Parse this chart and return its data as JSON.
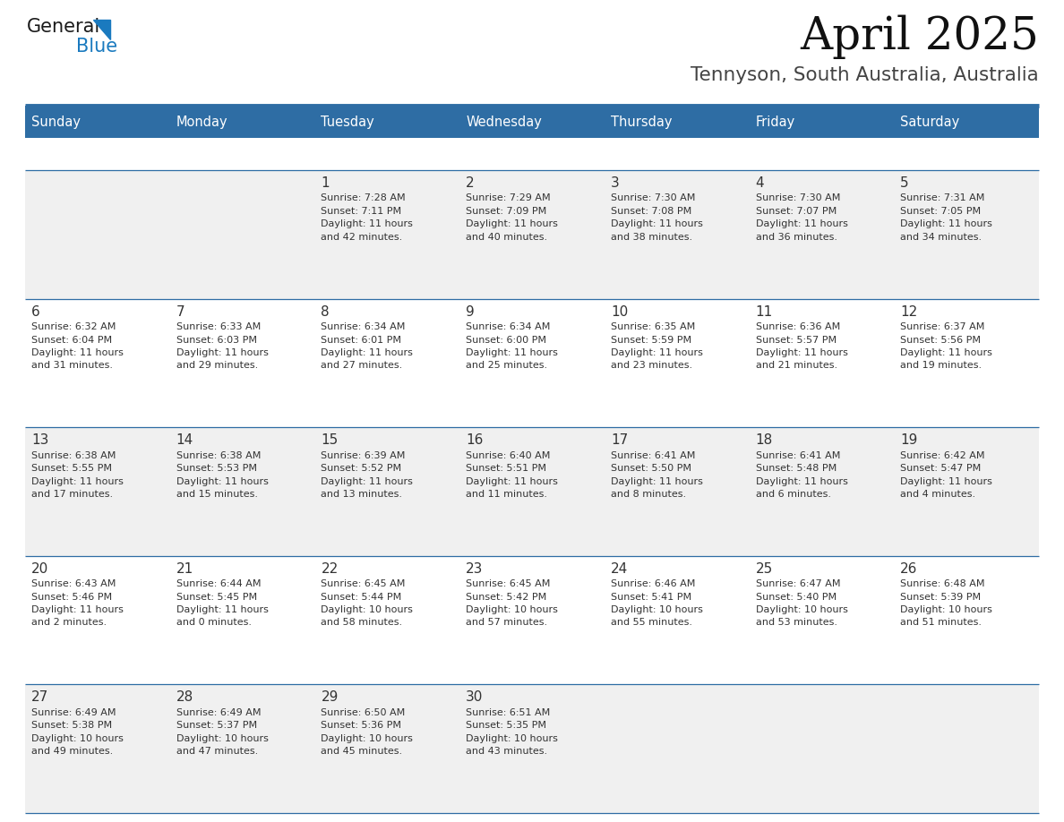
{
  "title": "April 2025",
  "subtitle": "Tennyson, South Australia, Australia",
  "header_bg": "#2E6DA4",
  "header_text_color": "#FFFFFF",
  "cell_bg_odd": "#F0F0F0",
  "cell_bg_even": "#FFFFFF",
  "separator_color": "#2E6DA4",
  "text_color": "#333333",
  "days_of_week": [
    "Sunday",
    "Monday",
    "Tuesday",
    "Wednesday",
    "Thursday",
    "Friday",
    "Saturday"
  ],
  "weeks": [
    [
      {
        "day": "",
        "info": ""
      },
      {
        "day": "",
        "info": ""
      },
      {
        "day": "1",
        "info": "Sunrise: 7:28 AM\nSunset: 7:11 PM\nDaylight: 11 hours\nand 42 minutes."
      },
      {
        "day": "2",
        "info": "Sunrise: 7:29 AM\nSunset: 7:09 PM\nDaylight: 11 hours\nand 40 minutes."
      },
      {
        "day": "3",
        "info": "Sunrise: 7:30 AM\nSunset: 7:08 PM\nDaylight: 11 hours\nand 38 minutes."
      },
      {
        "day": "4",
        "info": "Sunrise: 7:30 AM\nSunset: 7:07 PM\nDaylight: 11 hours\nand 36 minutes."
      },
      {
        "day": "5",
        "info": "Sunrise: 7:31 AM\nSunset: 7:05 PM\nDaylight: 11 hours\nand 34 minutes."
      }
    ],
    [
      {
        "day": "6",
        "info": "Sunrise: 6:32 AM\nSunset: 6:04 PM\nDaylight: 11 hours\nand 31 minutes."
      },
      {
        "day": "7",
        "info": "Sunrise: 6:33 AM\nSunset: 6:03 PM\nDaylight: 11 hours\nand 29 minutes."
      },
      {
        "day": "8",
        "info": "Sunrise: 6:34 AM\nSunset: 6:01 PM\nDaylight: 11 hours\nand 27 minutes."
      },
      {
        "day": "9",
        "info": "Sunrise: 6:34 AM\nSunset: 6:00 PM\nDaylight: 11 hours\nand 25 minutes."
      },
      {
        "day": "10",
        "info": "Sunrise: 6:35 AM\nSunset: 5:59 PM\nDaylight: 11 hours\nand 23 minutes."
      },
      {
        "day": "11",
        "info": "Sunrise: 6:36 AM\nSunset: 5:57 PM\nDaylight: 11 hours\nand 21 minutes."
      },
      {
        "day": "12",
        "info": "Sunrise: 6:37 AM\nSunset: 5:56 PM\nDaylight: 11 hours\nand 19 minutes."
      }
    ],
    [
      {
        "day": "13",
        "info": "Sunrise: 6:38 AM\nSunset: 5:55 PM\nDaylight: 11 hours\nand 17 minutes."
      },
      {
        "day": "14",
        "info": "Sunrise: 6:38 AM\nSunset: 5:53 PM\nDaylight: 11 hours\nand 15 minutes."
      },
      {
        "day": "15",
        "info": "Sunrise: 6:39 AM\nSunset: 5:52 PM\nDaylight: 11 hours\nand 13 minutes."
      },
      {
        "day": "16",
        "info": "Sunrise: 6:40 AM\nSunset: 5:51 PM\nDaylight: 11 hours\nand 11 minutes."
      },
      {
        "day": "17",
        "info": "Sunrise: 6:41 AM\nSunset: 5:50 PM\nDaylight: 11 hours\nand 8 minutes."
      },
      {
        "day": "18",
        "info": "Sunrise: 6:41 AM\nSunset: 5:48 PM\nDaylight: 11 hours\nand 6 minutes."
      },
      {
        "day": "19",
        "info": "Sunrise: 6:42 AM\nSunset: 5:47 PM\nDaylight: 11 hours\nand 4 minutes."
      }
    ],
    [
      {
        "day": "20",
        "info": "Sunrise: 6:43 AM\nSunset: 5:46 PM\nDaylight: 11 hours\nand 2 minutes."
      },
      {
        "day": "21",
        "info": "Sunrise: 6:44 AM\nSunset: 5:45 PM\nDaylight: 11 hours\nand 0 minutes."
      },
      {
        "day": "22",
        "info": "Sunrise: 6:45 AM\nSunset: 5:44 PM\nDaylight: 10 hours\nand 58 minutes."
      },
      {
        "day": "23",
        "info": "Sunrise: 6:45 AM\nSunset: 5:42 PM\nDaylight: 10 hours\nand 57 minutes."
      },
      {
        "day": "24",
        "info": "Sunrise: 6:46 AM\nSunset: 5:41 PM\nDaylight: 10 hours\nand 55 minutes."
      },
      {
        "day": "25",
        "info": "Sunrise: 6:47 AM\nSunset: 5:40 PM\nDaylight: 10 hours\nand 53 minutes."
      },
      {
        "day": "26",
        "info": "Sunrise: 6:48 AM\nSunset: 5:39 PM\nDaylight: 10 hours\nand 51 minutes."
      }
    ],
    [
      {
        "day": "27",
        "info": "Sunrise: 6:49 AM\nSunset: 5:38 PM\nDaylight: 10 hours\nand 49 minutes."
      },
      {
        "day": "28",
        "info": "Sunrise: 6:49 AM\nSunset: 5:37 PM\nDaylight: 10 hours\nand 47 minutes."
      },
      {
        "day": "29",
        "info": "Sunrise: 6:50 AM\nSunset: 5:36 PM\nDaylight: 10 hours\nand 45 minutes."
      },
      {
        "day": "30",
        "info": "Sunrise: 6:51 AM\nSunset: 5:35 PM\nDaylight: 10 hours\nand 43 minutes."
      },
      {
        "day": "",
        "info": ""
      },
      {
        "day": "",
        "info": ""
      },
      {
        "day": "",
        "info": ""
      }
    ]
  ],
  "logo_color_general": "#1a1a1a",
  "logo_color_blue": "#1a7abf",
  "logo_triangle_color": "#1a7abf",
  "fig_width": 11.88,
  "fig_height": 9.18,
  "dpi": 100
}
